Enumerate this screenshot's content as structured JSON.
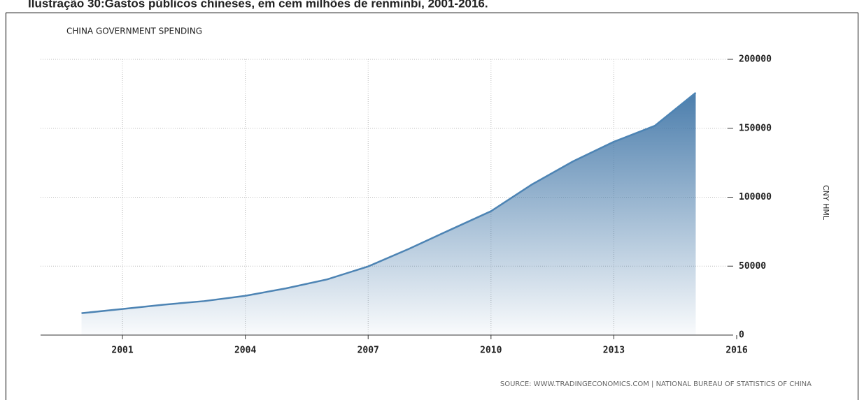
{
  "caption": "Ilustração 30:Gastos públicos chineses, em cem milhões de renminbi, 2001-2016.",
  "chart_data": {
    "type": "area",
    "title": "CHINA GOVERNMENT SPENDING",
    "x": [
      2000,
      2001,
      2002,
      2003,
      2004,
      2005,
      2006,
      2007,
      2008,
      2009,
      2010,
      2011,
      2012,
      2013,
      2014,
      2015
    ],
    "series": [
      {
        "name": "China Government Spending",
        "color": "#4d84b4",
        "values": [
          15887,
          18903,
          22053,
          24650,
          28487,
          33930,
          40423,
          49781,
          62593,
          76300,
          89874,
          109248,
          125953,
          140212,
          151786,
          175768
        ]
      }
    ],
    "xlim": [
      1999,
      2016
    ],
    "xticks": [
      2001,
      2004,
      2007,
      2010,
      2013,
      2016
    ],
    "ylim": [
      0,
      200000
    ],
    "yticks": [
      0,
      50000,
      100000,
      150000,
      200000
    ],
    "y_label": "CNY HML",
    "source": "SOURCE: WWW.TRADINGECONOMICS.COM | NATIONAL BUREAU OF STATISTICS OF CHINA",
    "grid": true
  }
}
